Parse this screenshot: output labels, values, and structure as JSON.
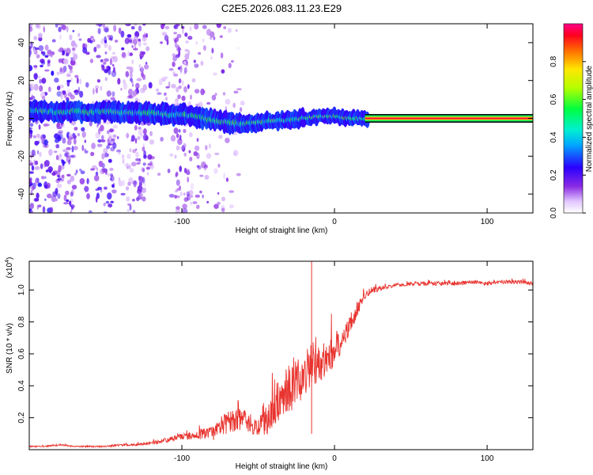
{
  "page_title": "C2E5.2026.083.11.23.E29",
  "chart_data": [
    {
      "type": "heatmap",
      "title": "C2E5.2026.083.11.23.E29",
      "xlabel": "Height of straight line (km)",
      "ylabel": "Frequency (Hz)",
      "xlim": [
        -200,
        130
      ],
      "ylim": [
        -50,
        50
      ],
      "x_ticks": [
        -100,
        0,
        100
      ],
      "x_tick_labels": [
        "-100",
        "0",
        "100"
      ],
      "y_ticks": [
        -40,
        -20,
        0,
        20,
        40
      ],
      "y_tick_labels": [
        "-40",
        "-20",
        "0",
        "20",
        "40"
      ],
      "ridge": {
        "x": [
          -190,
          -180,
          -170,
          -160,
          -150,
          -140,
          -130,
          -120,
          -110,
          -100,
          -90,
          -80,
          -70,
          -60,
          -50,
          -40,
          -30,
          -20,
          -10,
          0,
          10,
          20,
          130
        ],
        "frequency": [
          4,
          3,
          4,
          3,
          4,
          3,
          3,
          3,
          2,
          2,
          1,
          -1,
          -2,
          -3,
          -2,
          -1,
          -1,
          0,
          1,
          1,
          0,
          0,
          0
        ]
      },
      "colorbar": {
        "label": "Normalized spectral amplitude",
        "range": [
          0.0,
          1.0
        ],
        "ticks": [
          0.0,
          0.2,
          0.4,
          0.6,
          0.8
        ],
        "tick_labels": [
          "0.0",
          "0.2",
          "0.4",
          "0.6",
          "0.8"
        ]
      }
    },
    {
      "type": "line",
      "xlabel": "Height of straight line (km)",
      "ylabel": "SNR (10 * v/v)",
      "y_scale_label": "(x10",
      "y_scale_exponent": "4",
      "y_scale_suffix": ")",
      "xlim": [
        -200,
        130
      ],
      "ylim": [
        0,
        1.18
      ],
      "x_ticks": [
        -100,
        0,
        100
      ],
      "x_tick_labels": [
        "-100",
        "0",
        "100"
      ],
      "y_ticks": [
        0.2,
        0.4,
        0.6,
        0.8,
        1.0
      ],
      "y_tick_labels": [
        "0.2",
        "0.4",
        "0.6",
        "0.8",
        "1.0"
      ],
      "series": [
        {
          "name": "SNR",
          "color": "#e8332e",
          "x": [
            -200,
            -190,
            -180,
            -170,
            -160,
            -150,
            -140,
            -130,
            -120,
            -110,
            -100,
            -90,
            -80,
            -75,
            -70,
            -65,
            -60,
            -55,
            -50,
            -45,
            -40,
            -35,
            -30,
            -25,
            -20,
            -15,
            -10,
            -5,
            0,
            5,
            10,
            15,
            20,
            25,
            30,
            40,
            50,
            60,
            70,
            80,
            90,
            100,
            110,
            120,
            130
          ],
          "values": [
            0.02,
            0.02,
            0.03,
            0.02,
            0.02,
            0.02,
            0.03,
            0.03,
            0.04,
            0.06,
            0.08,
            0.09,
            0.1,
            0.14,
            0.17,
            0.18,
            0.2,
            0.15,
            0.14,
            0.18,
            0.25,
            0.32,
            0.4,
            0.45,
            0.5,
            0.55,
            0.52,
            0.58,
            0.62,
            0.68,
            0.78,
            0.88,
            0.97,
            1.0,
            1.01,
            1.03,
            1.04,
            1.04,
            1.04,
            1.04,
            1.05,
            1.04,
            1.05,
            1.05,
            1.04
          ],
          "noise": [
            0.004,
            0.004,
            0.005,
            0.004,
            0.005,
            0.005,
            0.006,
            0.007,
            0.01,
            0.015,
            0.02,
            0.03,
            0.045,
            0.06,
            0.07,
            0.07,
            0.07,
            0.05,
            0.05,
            0.09,
            0.13,
            0.15,
            0.17,
            0.18,
            0.17,
            0.15,
            0.12,
            0.11,
            0.1,
            0.08,
            0.06,
            0.05,
            0.03,
            0.02,
            0.015,
            0.012,
            0.012,
            0.012,
            0.012,
            0.012,
            0.012,
            0.012,
            0.012,
            0.012,
            0.012
          ]
        }
      ]
    }
  ]
}
